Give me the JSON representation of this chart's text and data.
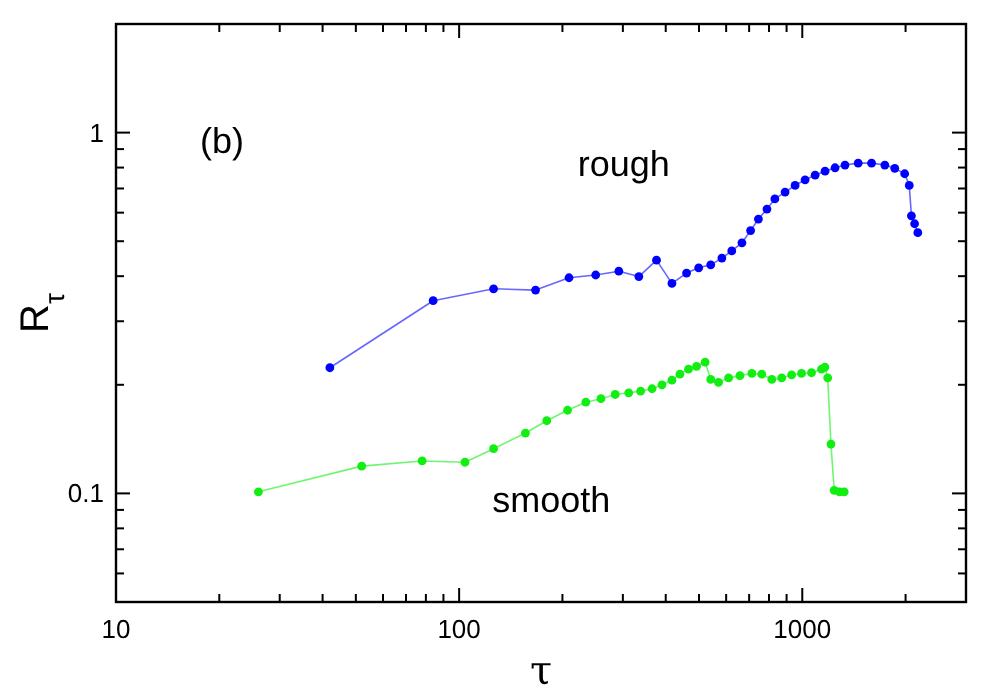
{
  "chart_data": {
    "type": "line",
    "xlabel": "τ",
    "ylabel": "R$_{τ}$",
    "log": "xy",
    "marker": "circle",
    "line_style": "solid",
    "grid": false,
    "annotations": [
      "(b)"
    ],
    "xlim": [
      10,
      3000
    ],
    "ylim": [
      0.05,
      2
    ],
    "xticks": [
      10,
      {
        "value": 20,
        "label": null
      },
      {
        "value": 30,
        "label": null
      },
      {
        "value": 40,
        "label": null
      },
      {
        "value": 50,
        "label": null
      },
      {
        "value": 60,
        "label": null
      },
      {
        "value": 70,
        "label": null
      },
      {
        "value": 80,
        "label": null
      },
      {
        "value": 90,
        "label": null
      },
      100,
      {
        "value": 200,
        "label": null
      },
      {
        "value": 300,
        "label": null
      },
      {
        "value": 400,
        "label": null
      },
      {
        "value": 500,
        "label": null
      },
      {
        "value": 600,
        "label": null
      },
      {
        "value": 700,
        "label": null
      },
      {
        "value": 800,
        "label": null
      },
      {
        "value": 900,
        "label": null
      },
      1000,
      {
        "value": 2000,
        "label": null
      },
      {
        "value": 3000,
        "label": null
      }
    ],
    "yticks": [
      {
        "value": 0.05,
        "label": null
      },
      {
        "value": 0.06,
        "label": null
      },
      {
        "value": 0.07,
        "label": null
      },
      {
        "value": 0.08,
        "label": null
      },
      {
        "value": 0.09,
        "label": null
      },
      0.1,
      {
        "value": 0.2,
        "label": null
      },
      {
        "value": 0.3,
        "label": null
      },
      {
        "value": 0.4,
        "label": null
      },
      {
        "value": 0.5,
        "label": null
      },
      {
        "value": 0.6,
        "label": null
      },
      {
        "value": 0.7,
        "label": null
      },
      {
        "value": 0.8,
        "label": null
      },
      {
        "value": 0.9,
        "label": null
      },
      1,
      {
        "value": 2,
        "label": null
      }
    ],
    "series": [
      {
        "name": "rough",
        "color": "#0000ff",
        "x": [
          42,
          84,
          126,
          167,
          209,
          250,
          292,
          334,
          376,
          417,
          460,
          499,
          541,
          583,
          623,
          667,
          707,
          745,
          789,
          832,
          891,
          953,
          1019,
          1090,
          1165,
          1246,
          1332,
          1455,
          1592,
          1740,
          1860,
          1988,
          2050,
          2080,
          2125,
          2171
        ],
        "values": [
          0.223,
          0.342,
          0.369,
          0.366,
          0.396,
          0.403,
          0.413,
          0.399,
          0.443,
          0.382,
          0.408,
          0.422,
          0.43,
          0.449,
          0.47,
          0.495,
          0.535,
          0.576,
          0.614,
          0.655,
          0.684,
          0.714,
          0.74,
          0.762,
          0.782,
          0.799,
          0.813,
          0.823,
          0.823,
          0.813,
          0.796,
          0.769,
          0.714,
          0.588,
          0.559,
          0.528
        ]
      },
      {
        "name": "smooth",
        "color": "#11ee11",
        "x": [
          26,
          52,
          78,
          104,
          126,
          156,
          180,
          207,
          234,
          259,
          285,
          312,
          338,
          365,
          390,
          417,
          440,
          466,
          492,
          521,
          541,
          570,
          610,
          658,
          713,
          762,
          815,
          871,
          931,
          995,
          1064,
          1138,
          1164,
          1186,
          1212,
          1239,
          1284,
          1325
        ],
        "values": [
          0.101,
          0.119,
          0.123,
          0.122,
          0.133,
          0.147,
          0.159,
          0.17,
          0.179,
          0.183,
          0.188,
          0.19,
          0.192,
          0.195,
          0.2,
          0.206,
          0.214,
          0.221,
          0.225,
          0.231,
          0.207,
          0.203,
          0.209,
          0.212,
          0.215,
          0.214,
          0.207,
          0.209,
          0.213,
          0.215,
          0.216,
          0.221,
          0.224,
          0.209,
          0.137,
          0.102,
          0.101,
          0.101
        ]
      }
    ]
  }
}
